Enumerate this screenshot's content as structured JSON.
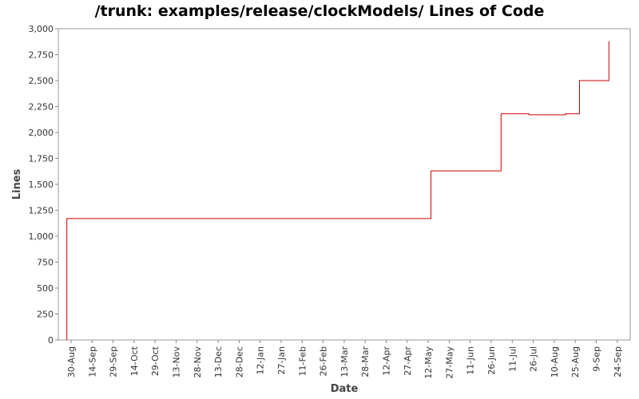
{
  "chart_data": {
    "type": "line",
    "title": "/trunk: examples/release/clockModels/ Lines of Code",
    "xlabel": "Date",
    "ylabel": "Lines",
    "ylim": [
      0,
      3000
    ],
    "yticks": [
      "0",
      "250",
      "500",
      "750",
      "1,000",
      "1,250",
      "1,500",
      "1,750",
      "2,000",
      "2,250",
      "2,500",
      "2,750",
      "3,000"
    ],
    "xticks": [
      "30-Aug",
      "14-Sep",
      "29-Sep",
      "14-Oct",
      "29-Oct",
      "13-Nov",
      "28-Nov",
      "13-Dec",
      "28-Dec",
      "12-Jan",
      "27-Jan",
      "11-Feb",
      "26-Feb",
      "13-Mar",
      "28-Mar",
      "12-Apr",
      "27-Apr",
      "12-May",
      "27-May",
      "11-Jun",
      "26-Jun",
      "11-Jul",
      "26-Jul",
      "10-Aug",
      "25-Aug",
      "9-Sep",
      "24-Sep"
    ],
    "series": [
      {
        "x": [
          "27-Aug",
          "27-Aug",
          "14-May",
          "14-May",
          "03-Jul",
          "03-Jul",
          "23-Jul",
          "23-Jul",
          "18-Aug",
          "18-Aug",
          "28-Aug",
          "28-Aug",
          "18-Sep",
          "18-Sep"
        ],
        "values": [
          0,
          1170,
          1170,
          1630,
          1630,
          2180,
          2180,
          2170,
          2170,
          2180,
          2180,
          2500,
          2500,
          2880
        ]
      }
    ],
    "line_color": "#cc0000",
    "grid": false
  }
}
